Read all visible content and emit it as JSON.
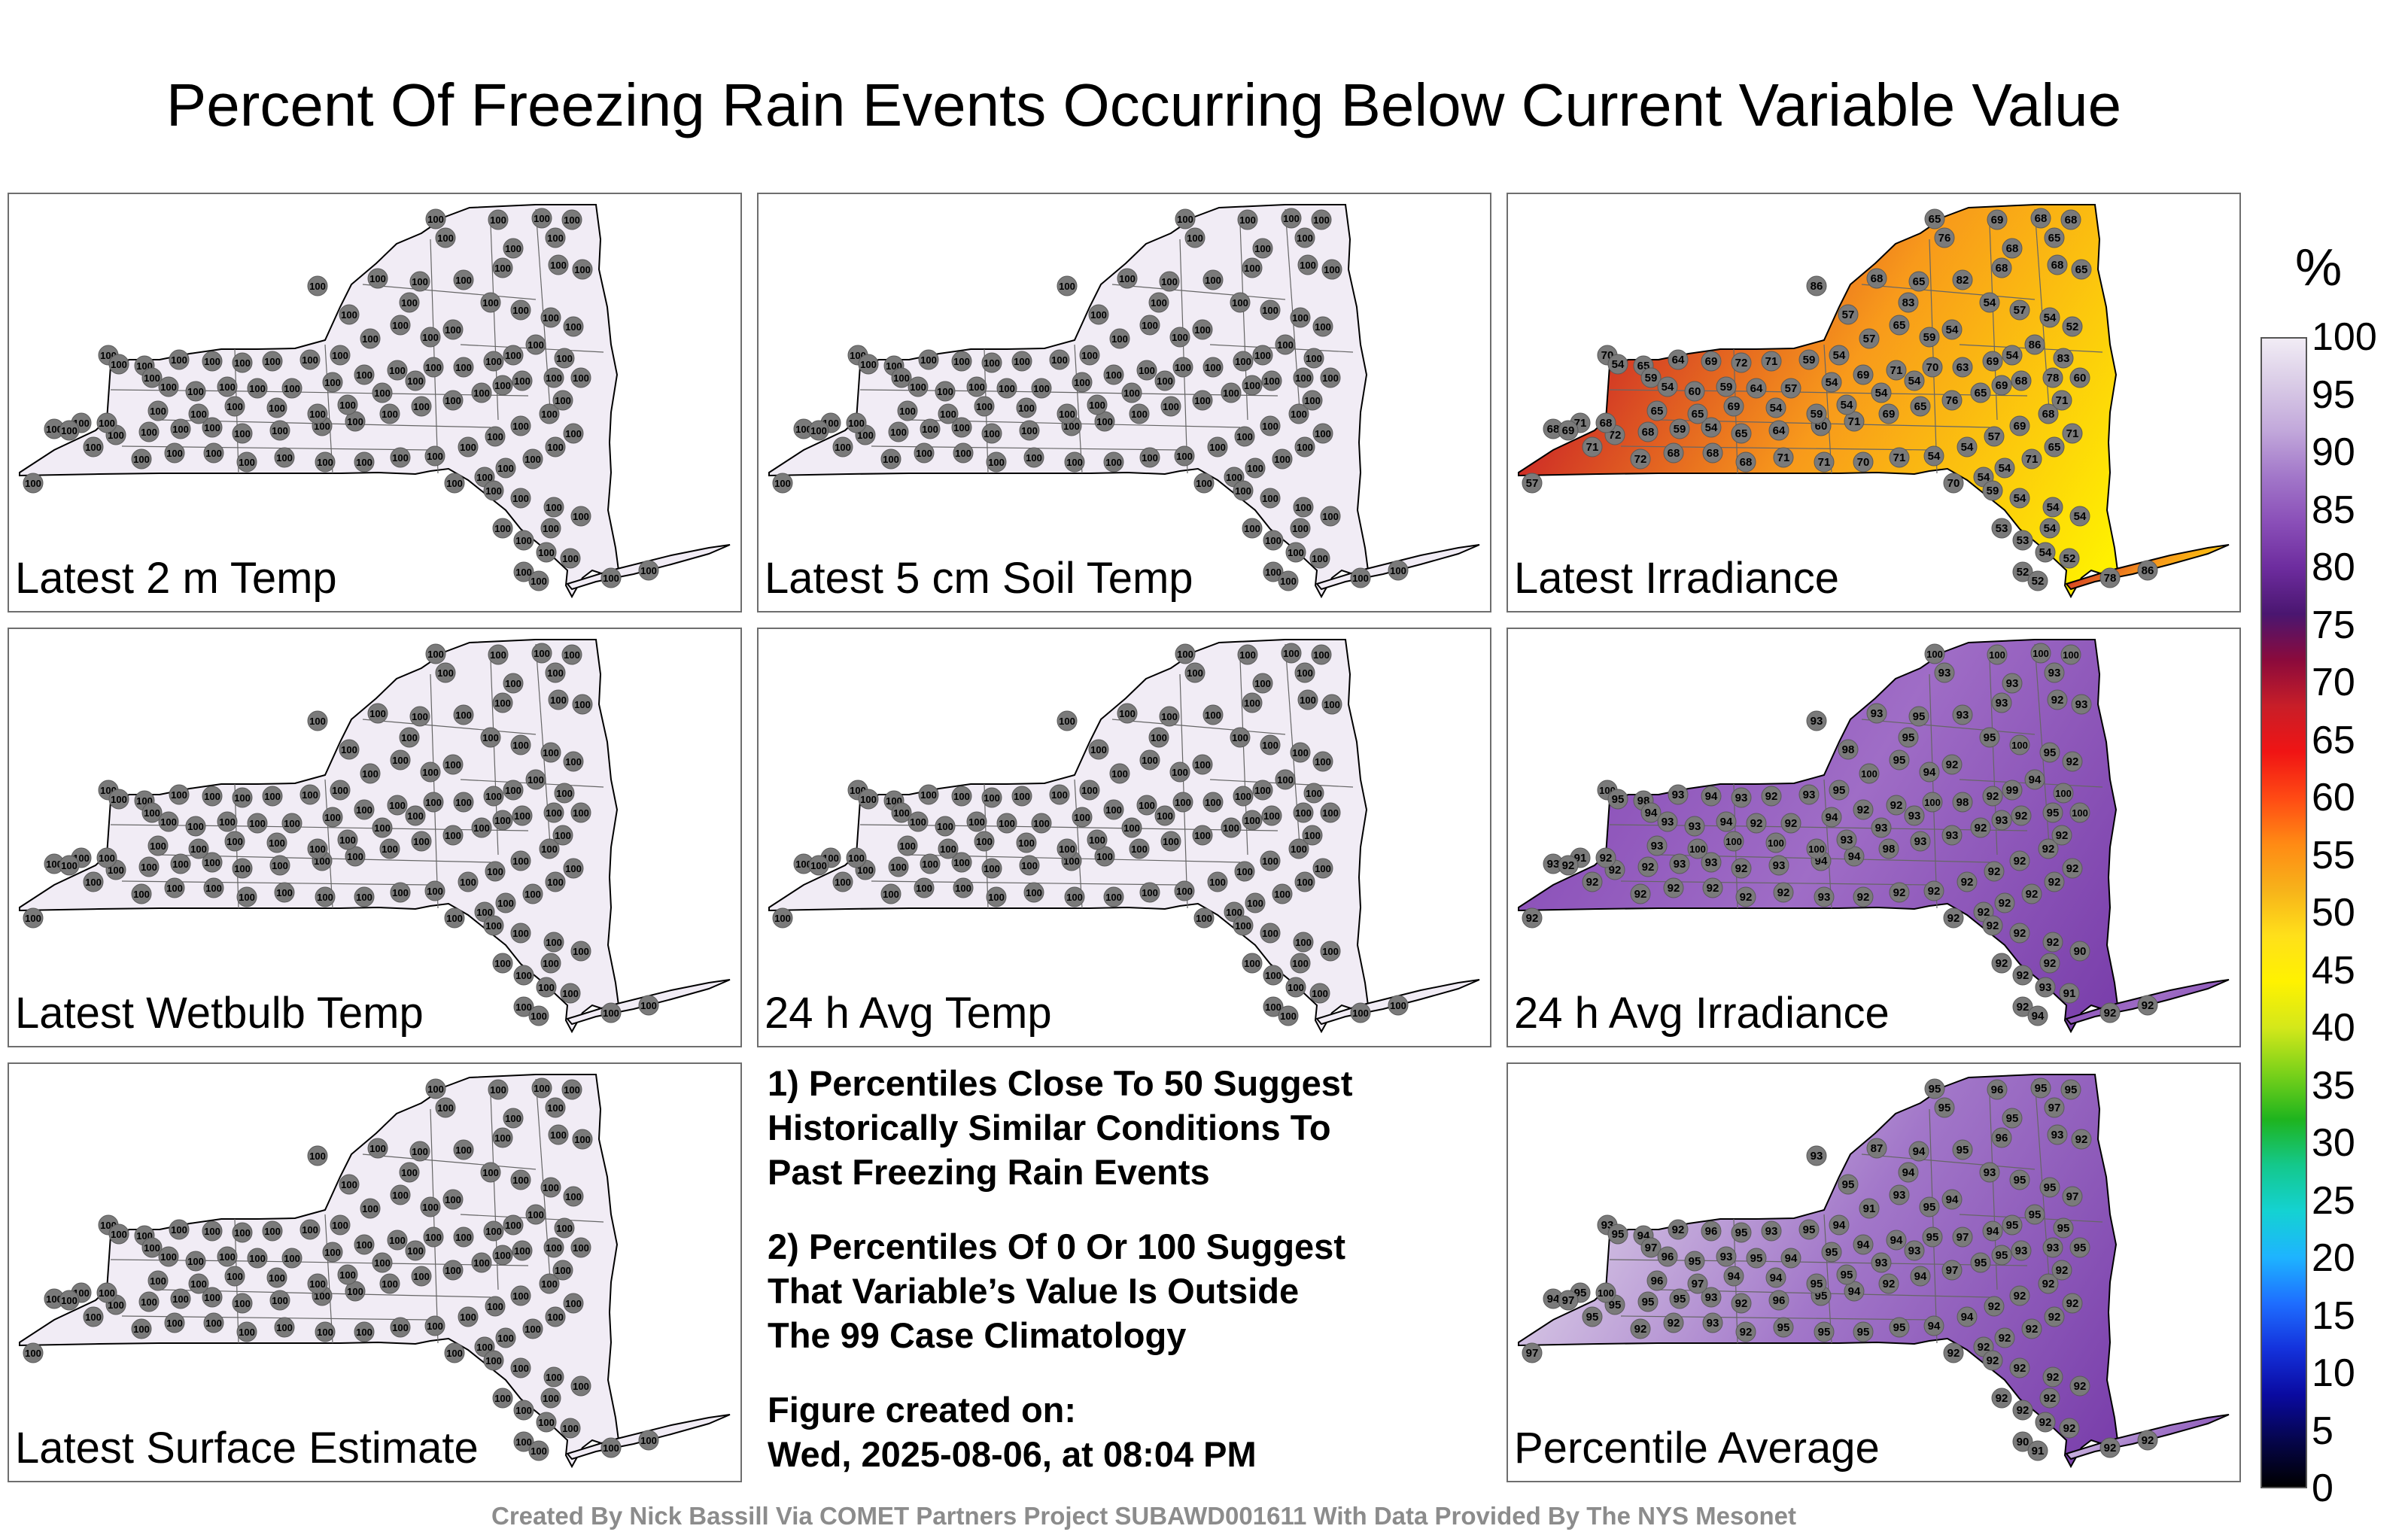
{
  "title": "Percent Of Freezing Rain Events Occurring Below Current Variable Value",
  "panels": [
    {
      "id": "latest-2m-temp",
      "label": "Latest 2 m Temp",
      "fill": "#f1ecf5",
      "fill_west": "#f1ecf5",
      "fill_south": "#f1ecf5",
      "stations": [
        100
      ]
    },
    {
      "id": "latest-5cm-soil-temp",
      "label": "Latest 5 cm Soil Temp",
      "fill": "#f1ecf5",
      "fill_west": "#f1ecf5",
      "fill_south": "#f1ecf5",
      "stations": [
        100
      ]
    },
    {
      "id": "latest-irradiance",
      "label": "Latest Irradiance",
      "fill": "#f89a1b",
      "fill_west": "#c81e28",
      "fill_south": "#fff200",
      "stations": [
        65,
        69,
        68,
        68,
        65,
        76,
        86,
        68,
        65,
        57,
        68,
        68,
        82,
        83,
        68,
        65,
        54,
        57,
        54,
        52,
        54,
        59,
        65,
        57,
        54,
        59,
        71,
        72,
        69,
        64,
        65,
        70,
        54,
        59,
        54,
        60,
        59,
        64,
        57,
        54,
        69,
        71,
        70,
        63,
        69,
        54,
        86,
        83,
        60,
        78,
        68,
        69,
        65,
        76,
        65,
        69,
        71,
        60,
        64,
        65,
        54,
        59,
        68,
        72,
        71,
        68,
        71,
        72,
        68,
        68,
        68,
        71,
        71,
        70,
        71,
        54,
        54,
        57,
        69,
        68,
        71,
        71,
        65,
        71,
        54,
        54,
        70,
        59,
        54,
        54,
        54,
        54,
        53,
        53,
        54,
        52,
        52,
        52,
        52,
        53,
        52,
        78,
        86,
        57,
        69,
        68,
        65,
        65,
        69,
        54,
        59,
        54,
        54,
        54
      ]
    },
    {
      "id": "latest-wetbulb-temp",
      "label": "Latest Wetbulb Temp",
      "fill": "#f1ecf5",
      "fill_west": "#f1ecf5",
      "fill_south": "#f1ecf5",
      "stations": [
        100
      ]
    },
    {
      "id": "24h-avg-temp",
      "label": "24 h Avg Temp",
      "fill": "#f1ecf5",
      "fill_west": "#f1ecf5",
      "fill_south": "#f1ecf5",
      "stations": [
        100
      ]
    },
    {
      "id": "24h-avg-irradiance",
      "label": "24 h Avg Irradiance",
      "fill": "#9f6dc6",
      "fill_west": "#8a4fb8",
      "fill_south": "#7a3fab",
      "stations": [
        100,
        100,
        100,
        100,
        93,
        93,
        93,
        93,
        95,
        98,
        93,
        93,
        93,
        95,
        92,
        93,
        95,
        100,
        95,
        92,
        92,
        94,
        95,
        100,
        95,
        93,
        92,
        93,
        94,
        93,
        98,
        100,
        95,
        94,
        93,
        93,
        94,
        92,
        92,
        94,
        92,
        92,
        100,
        98,
        92,
        99,
        94,
        100,
        100,
        95,
        92,
        93,
        92,
        93,
        93,
        98,
        94,
        94,
        93,
        92,
        93,
        93,
        92,
        92,
        91,
        93,
        92,
        92,
        92,
        92,
        92,
        92,
        93,
        92,
        92,
        92,
        92,
        92,
        92,
        92,
        92,
        92,
        92,
        92,
        92,
        92,
        92,
        92,
        92,
        92,
        90,
        92,
        92,
        92,
        93,
        91,
        92,
        94,
        92,
        92,
        92,
        92,
        92,
        92,
        92,
        92,
        93
      ]
    },
    {
      "id": "latest-surface-estimate",
      "label": "Latest Surface Estimate",
      "fill": "#f1ecf5",
      "fill_west": "#f1ecf5",
      "fill_south": "#f1ecf5",
      "stations": [
        100
      ]
    },
    {
      "id": "percentile-average",
      "label": "Percentile Average",
      "fill": "#a277c9",
      "fill_west": "#d9cbe6",
      "fill_south": "#7a3fab",
      "stations": [
        95,
        96,
        95,
        95,
        97,
        95,
        93,
        87,
        94,
        95,
        95,
        96,
        95,
        94,
        93,
        92,
        93,
        95,
        95,
        97,
        94,
        95,
        93,
        91,
        94,
        95,
        93,
        95,
        96,
        92,
        94,
        93,
        95,
        97,
        96,
        95,
        93,
        95,
        94,
        95,
        94,
        94,
        95,
        97,
        94,
        95,
        95,
        95,
        95,
        93,
        93,
        95,
        95,
        97,
        94,
        92,
        94,
        95,
        96,
        92,
        93,
        95,
        95,
        95,
        95,
        94,
        95,
        92,
        92,
        93,
        92,
        95,
        95,
        95,
        95,
        94,
        94,
        92,
        92,
        92,
        92,
        92,
        92,
        92,
        92,
        92,
        92,
        92,
        92,
        92,
        92,
        92,
        92,
        92,
        92,
        92,
        90,
        91,
        92,
        92,
        92,
        92,
        92,
        97,
        97,
        100,
        96,
        97,
        94,
        94,
        95,
        95,
        93,
        93,
        94
      ]
    }
  ],
  "notes": [
    "1) Percentiles Close To 50 Suggest\nHistorically Similar Conditions To\nPast Freezing Rain Events",
    "2) Percentiles Of 0 Or 100 Suggest\nThat Variable’s Value Is Outside\nThe 99 Case Climatology",
    "Figure created on:\nWed, 2025-08-06, at 08:04 PM"
  ],
  "colorbar": {
    "unit": "%",
    "ticks": [
      "100",
      "95",
      "90",
      "85",
      "80",
      "75",
      "70",
      "65",
      "60",
      "55",
      "50",
      "45",
      "40",
      "35",
      "30",
      "25",
      "20",
      "15",
      "10",
      "5",
      "0"
    ],
    "colors": [
      "#f1ecf5",
      "#d9cbe6",
      "#c2a8db",
      "#a277c9",
      "#8a4fb8",
      "#6d2c9e",
      "#4a1670",
      "#8b0a3c",
      "#c81e28",
      "#f01414",
      "#ff4a14",
      "#ff8a14",
      "#f7b21a",
      "#ffe01a",
      "#fff200",
      "#d4e81a",
      "#7ad11a",
      "#1eb41e",
      "#14c88c",
      "#14d2d2",
      "#1eb4ff",
      "#1e6eff",
      "#1432dc",
      "#0a0aa0",
      "#05054b",
      "#000000"
    ]
  },
  "credit": "Created By Nick Bassill Via COMET Partners Project SUBAWD001611 With Data Provided By The NYS Mesonet"
}
